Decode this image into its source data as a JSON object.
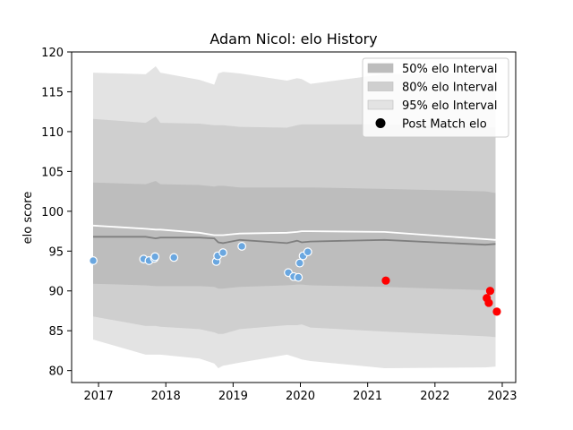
{
  "chart_data": {
    "type": "line",
    "title": "Adam Nicol: elo History",
    "xlabel": "",
    "ylabel": "elo score",
    "xlim": [
      2016.6,
      2023.2
    ],
    "ylim": [
      78.5,
      120
    ],
    "x_ticks": [
      2017,
      2018,
      2019,
      2020,
      2021,
      2022,
      2023
    ],
    "y_ticks": [
      80,
      85,
      90,
      95,
      100,
      105,
      110,
      115,
      120
    ],
    "legend": {
      "placement": "top-right",
      "entries": [
        "50% elo Interval",
        "80% elo Interval",
        "95% elo Interval",
        "Post Match elo"
      ]
    },
    "colors": {
      "band95": "#e3e3e3",
      "band80": "#cfcfcf",
      "band50": "#bdbdbd",
      "median_line": "#7f7f7f",
      "mean_line": "#ffffff",
      "history_points": "#6aa7e0",
      "recent_points": "#ff0000"
    },
    "x": [
      2016.92,
      2017.7,
      2017.85,
      2017.92,
      2018.5,
      2018.72,
      2018.78,
      2018.85,
      2019.1,
      2019.8,
      2019.95,
      2020.02,
      2020.15,
      2021.25,
      2022.75,
      2022.9
    ],
    "series": [
      {
        "name": "95% elo Interval",
        "lower": [
          83.9,
          82.0,
          82.0,
          82.0,
          81.5,
          80.9,
          80.3,
          80.6,
          81.0,
          82.0,
          81.6,
          81.4,
          81.2,
          80.3,
          80.4,
          80.5
        ],
        "upper": [
          117.4,
          117.2,
          118.2,
          117.4,
          116.5,
          115.9,
          117.3,
          117.5,
          117.3,
          116.4,
          116.7,
          116.6,
          116.0,
          117.2,
          117.4,
          117.5
        ]
      },
      {
        "name": "80% elo Interval",
        "lower": [
          86.8,
          85.6,
          85.6,
          85.5,
          85.2,
          84.8,
          84.6,
          84.6,
          85.2,
          85.7,
          85.7,
          85.8,
          85.4,
          84.9,
          84.3,
          84.2
        ],
        "upper": [
          111.6,
          111.1,
          111.9,
          111.1,
          111.0,
          110.8,
          110.8,
          110.8,
          110.6,
          110.5,
          110.8,
          110.9,
          110.9,
          110.9,
          110.6,
          110.5
        ]
      },
      {
        "name": "50% elo Interval",
        "lower": [
          90.9,
          90.7,
          90.6,
          90.6,
          90.6,
          90.5,
          90.3,
          90.3,
          90.5,
          90.7,
          90.8,
          90.8,
          90.7,
          90.5,
          90.1,
          90.0
        ],
        "upper": [
          103.6,
          103.4,
          103.8,
          103.4,
          103.3,
          103.1,
          103.2,
          103.2,
          103.0,
          103.0,
          103.0,
          103.0,
          103.0,
          102.8,
          102.5,
          102.3
        ]
      },
      {
        "name": "median",
        "values": [
          96.8,
          96.8,
          96.6,
          96.7,
          96.7,
          96.6,
          96.1,
          96.0,
          96.4,
          96.0,
          96.3,
          96.1,
          96.2,
          96.4,
          95.8,
          95.9
        ]
      },
      {
        "name": "mean",
        "values": [
          98.2,
          97.8,
          97.7,
          97.7,
          97.3,
          97.0,
          97.0,
          97.0,
          97.2,
          97.3,
          97.4,
          97.5,
          97.5,
          97.4,
          96.5,
          96.4
        ]
      },
      {
        "name": "Post Match elo",
        "points": [
          {
            "x": 2016.92,
            "y": 93.8
          },
          {
            "x": 2017.67,
            "y": 94.0
          },
          {
            "x": 2017.75,
            "y": 93.8
          },
          {
            "x": 2017.83,
            "y": 94.1
          },
          {
            "x": 2017.84,
            "y": 94.3
          },
          {
            "x": 2018.12,
            "y": 94.2
          },
          {
            "x": 2018.75,
            "y": 93.7
          },
          {
            "x": 2018.77,
            "y": 94.4
          },
          {
            "x": 2018.85,
            "y": 94.8
          },
          {
            "x": 2019.13,
            "y": 95.6
          },
          {
            "x": 2019.82,
            "y": 92.3
          },
          {
            "x": 2019.9,
            "y": 91.8
          },
          {
            "x": 2019.97,
            "y": 91.7
          },
          {
            "x": 2019.99,
            "y": 93.5
          },
          {
            "x": 2020.04,
            "y": 94.4
          },
          {
            "x": 2020.11,
            "y": 94.9
          }
        ]
      },
      {
        "name": "recent",
        "points": [
          {
            "x": 2021.27,
            "y": 91.3
          },
          {
            "x": 2022.77,
            "y": 89.1
          },
          {
            "x": 2022.8,
            "y": 88.5
          },
          {
            "x": 2022.82,
            "y": 90.0
          },
          {
            "x": 2022.92,
            "y": 87.4
          }
        ]
      }
    ],
    "grid": false
  }
}
